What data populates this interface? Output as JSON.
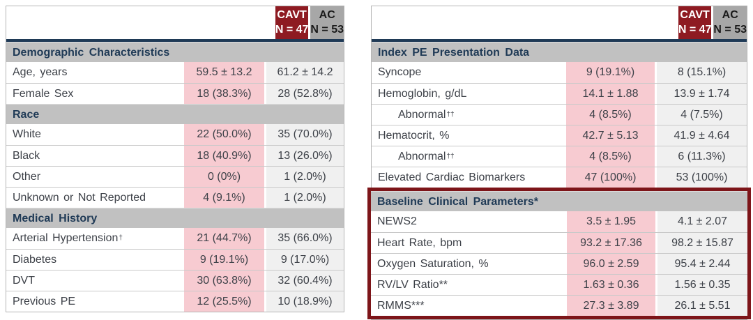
{
  "palette": {
    "maroon": "#8E1B22",
    "highlight_border": "#7D1519",
    "header_gray": "#A7A7A7",
    "section_gray": "#C1C1C1",
    "navy": "#1F3A56",
    "pink_cell": "#F7CBD1",
    "gray_cell": "#F0F0F0",
    "text": "#3D4148"
  },
  "columns": {
    "cavt": {
      "label": "CAVT",
      "n": "N = 47"
    },
    "ac": {
      "label": "AC",
      "n": "N = 53"
    }
  },
  "left_table": {
    "sections": [
      {
        "header": "Demographic Characteristics",
        "rows": [
          {
            "label": "Age, years",
            "cavt": "59.5 ± 13.2",
            "ac": "61.2 ± 14.2"
          },
          {
            "label": "Female Sex",
            "cavt": "18 (38.3%)",
            "ac": "28 (52.8%)"
          }
        ]
      },
      {
        "header": "Race",
        "rows": [
          {
            "label": "White",
            "cavt": "22 (50.0%)",
            "ac": "35 (70.0%)"
          },
          {
            "label": "Black",
            "cavt": "18 (40.9%)",
            "ac": "13 (26.0%)"
          },
          {
            "label": "Other",
            "cavt": "0 (0%)",
            "ac": "1 (2.0%)"
          },
          {
            "label": "Unknown or Not Reported",
            "cavt": "4 (9.1%)",
            "ac": "1 (2.0%)"
          }
        ]
      },
      {
        "header": "Medical History",
        "rows": [
          {
            "label": "Arterial Hypertension",
            "sup": "†",
            "cavt": "21 (44.7%)",
            "ac": "35 (66.0%)"
          },
          {
            "label": "Diabetes",
            "cavt": "9 (19.1%)",
            "ac": "9 (17.0%)"
          },
          {
            "label": "DVT",
            "cavt": "30 (63.8%)",
            "ac": "32 (60.4%)"
          },
          {
            "label": "Previous PE",
            "cavt": "12 (25.5%)",
            "ac": "10 (18.9%)"
          }
        ]
      }
    ]
  },
  "right_table": {
    "sections": [
      {
        "header": "Index PE Presentation Data",
        "rows": [
          {
            "label": "Syncope",
            "cavt": "9 (19.1%)",
            "ac": "8 (15.1%)"
          },
          {
            "label": "Hemoglobin, g/dL",
            "cavt": "14.1 ± 1.88",
            "ac": "13.9 ± 1.74"
          },
          {
            "label": "Abnormal",
            "sup": "††",
            "indent": true,
            "cavt": "4 (8.5%)",
            "ac": "4 (7.5%)"
          },
          {
            "label": "Hematocrit, %",
            "cavt": "42.7 ± 5.13",
            "ac": "41.9 ± 4.64"
          },
          {
            "label": "Abnormal",
            "sup": "††",
            "indent": true,
            "cavt": "4 (8.5%)",
            "ac": "6 (11.3%)"
          },
          {
            "label": "Elevated Cardiac Biomarkers",
            "cavt": "47 (100%)",
            "ac": "53 (100%)"
          }
        ]
      },
      {
        "header": "Baseline Clinical Parameters*",
        "highlighted": true,
        "rows": [
          {
            "label": "NEWS2",
            "cavt": "3.5 ± 1.95",
            "ac": "4.1 ± 2.07"
          },
          {
            "label": "Heart Rate, bpm",
            "cavt": "93.2 ± 17.36",
            "ac": "98.2 ± 15.87"
          },
          {
            "label": "Oxygen Saturation, %",
            "cavt": "96.0 ± 2.59",
            "ac": "95.4 ± 2.44"
          },
          {
            "label": "RV/LV Ratio**",
            "cavt": "1.63 ± 0.36",
            "ac": "1.56 ± 0.35"
          },
          {
            "label": "RMMS***",
            "cavt": "27.3 ± 3.89",
            "ac": "26.1 ± 5.51"
          }
        ]
      }
    ]
  }
}
